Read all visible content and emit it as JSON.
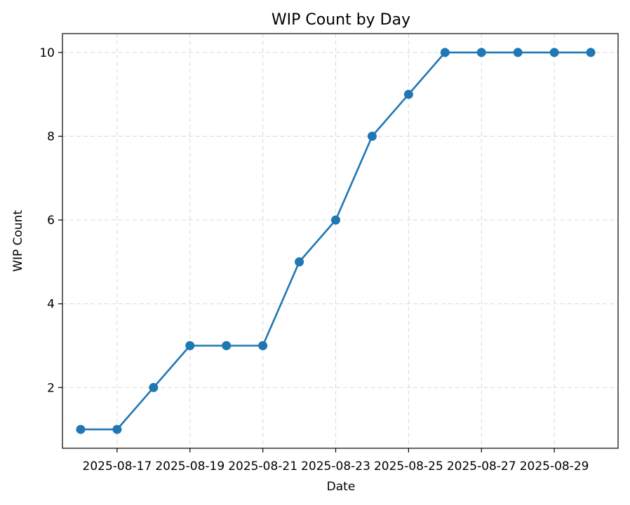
{
  "chart_data": {
    "type": "line",
    "title": "WIP Count by Day",
    "xlabel": "Date",
    "ylabel": "WIP Count",
    "grid": true,
    "color": "#1f77b4",
    "x": [
      "2025-08-16",
      "2025-08-17",
      "2025-08-18",
      "2025-08-19",
      "2025-08-20",
      "2025-08-21",
      "2025-08-22",
      "2025-08-23",
      "2025-08-24",
      "2025-08-25",
      "2025-08-26",
      "2025-08-27",
      "2025-08-28",
      "2025-08-29",
      "2025-08-30"
    ],
    "series": [
      {
        "values": [
          1,
          1,
          2,
          3,
          3,
          3,
          5,
          6,
          8,
          9,
          10,
          10,
          10,
          10,
          10
        ]
      }
    ],
    "xlim": [
      "2025-08-15T12:00",
      "2025-08-30T18:00"
    ],
    "ylim": [
      0.55,
      10.45
    ],
    "xticks": [
      "2025-08-17",
      "2025-08-19",
      "2025-08-21",
      "2025-08-23",
      "2025-08-25",
      "2025-08-27",
      "2025-08-29"
    ],
    "yticks": [
      2,
      4,
      6,
      8,
      10
    ]
  }
}
